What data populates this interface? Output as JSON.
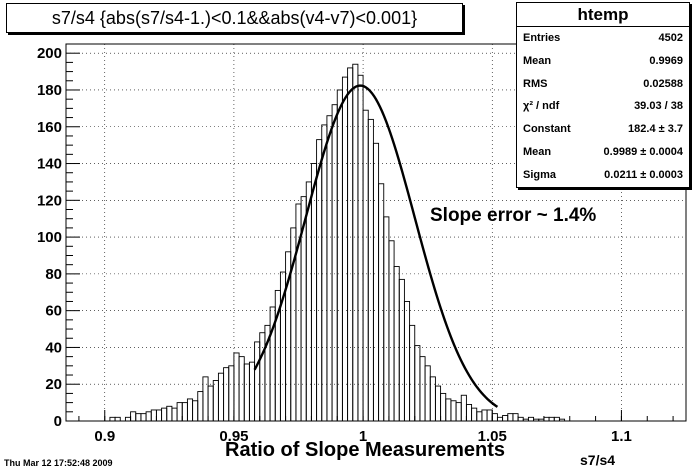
{
  "title": "s7/s4 {abs(s7/s4-1.)<0.1&&abs(v4-v7)<0.001}",
  "stats": {
    "name": "htemp",
    "rows": [
      {
        "label": "Entries",
        "value": "4502"
      },
      {
        "label": "Mean",
        "value": "0.9969"
      },
      {
        "label": "RMS",
        "value": "0.02588"
      },
      {
        "label": "χ² / ndf",
        "value": "39.03 / 38"
      },
      {
        "label": "Constant",
        "value": "182.4 ± 3.7"
      },
      {
        "label": "Mean",
        "value": "0.9989 ± 0.0004"
      },
      {
        "label": "Sigma",
        "value": "0.0211 ± 0.0003"
      }
    ]
  },
  "annotation": "Slope error ~ 1.4%",
  "xlabel": "Ratio of Slope Measurements",
  "xvar": "s7/s4",
  "timestamp": "Thu Mar 12 17:52:48 2009",
  "chart_data": {
    "type": "histogram",
    "xlim": [
      0.885,
      1.125
    ],
    "ylim": [
      0,
      205
    ],
    "bin_start": 0.9,
    "bin_width": 0.002,
    "counts": [
      0,
      2,
      2,
      0,
      2,
      5,
      4,
      4,
      5,
      6,
      6,
      7,
      8,
      7,
      10,
      10,
      12,
      11,
      16,
      24,
      19,
      22,
      26,
      29,
      30,
      37,
      35,
      31,
      32,
      43,
      48,
      52,
      62,
      71,
      81,
      92,
      105,
      118,
      122,
      130,
      140,
      153,
      161,
      166,
      172,
      180,
      187,
      192,
      194,
      188,
      169,
      164,
      151,
      129,
      111,
      98,
      84,
      77,
      65,
      52,
      41,
      35,
      30,
      24,
      19,
      15,
      12,
      11,
      10,
      14,
      9,
      7,
      5,
      6,
      6,
      4,
      2,
      3,
      4,
      4,
      2,
      1,
      2,
      1,
      1,
      2,
      2,
      2,
      1,
      0
    ],
    "fit": {
      "constant": 182.4,
      "mean": 0.9989,
      "sigma": 0.0211,
      "range": [
        0.958,
        1.052
      ]
    },
    "xticks": [
      0.9,
      0.95,
      1,
      1.05,
      1.1
    ],
    "xtick_labels": [
      "0.9",
      "0.95",
      "1",
      "1.05",
      "1.1"
    ],
    "yticks": [
      0,
      20,
      40,
      60,
      80,
      100,
      120,
      140,
      160,
      180,
      200
    ],
    "ytick_labels": [
      "0",
      "20",
      "40",
      "60",
      "80",
      "100",
      "120",
      "140",
      "160",
      "180",
      "200"
    ],
    "grid": true,
    "legend_placement": "top-right"
  }
}
